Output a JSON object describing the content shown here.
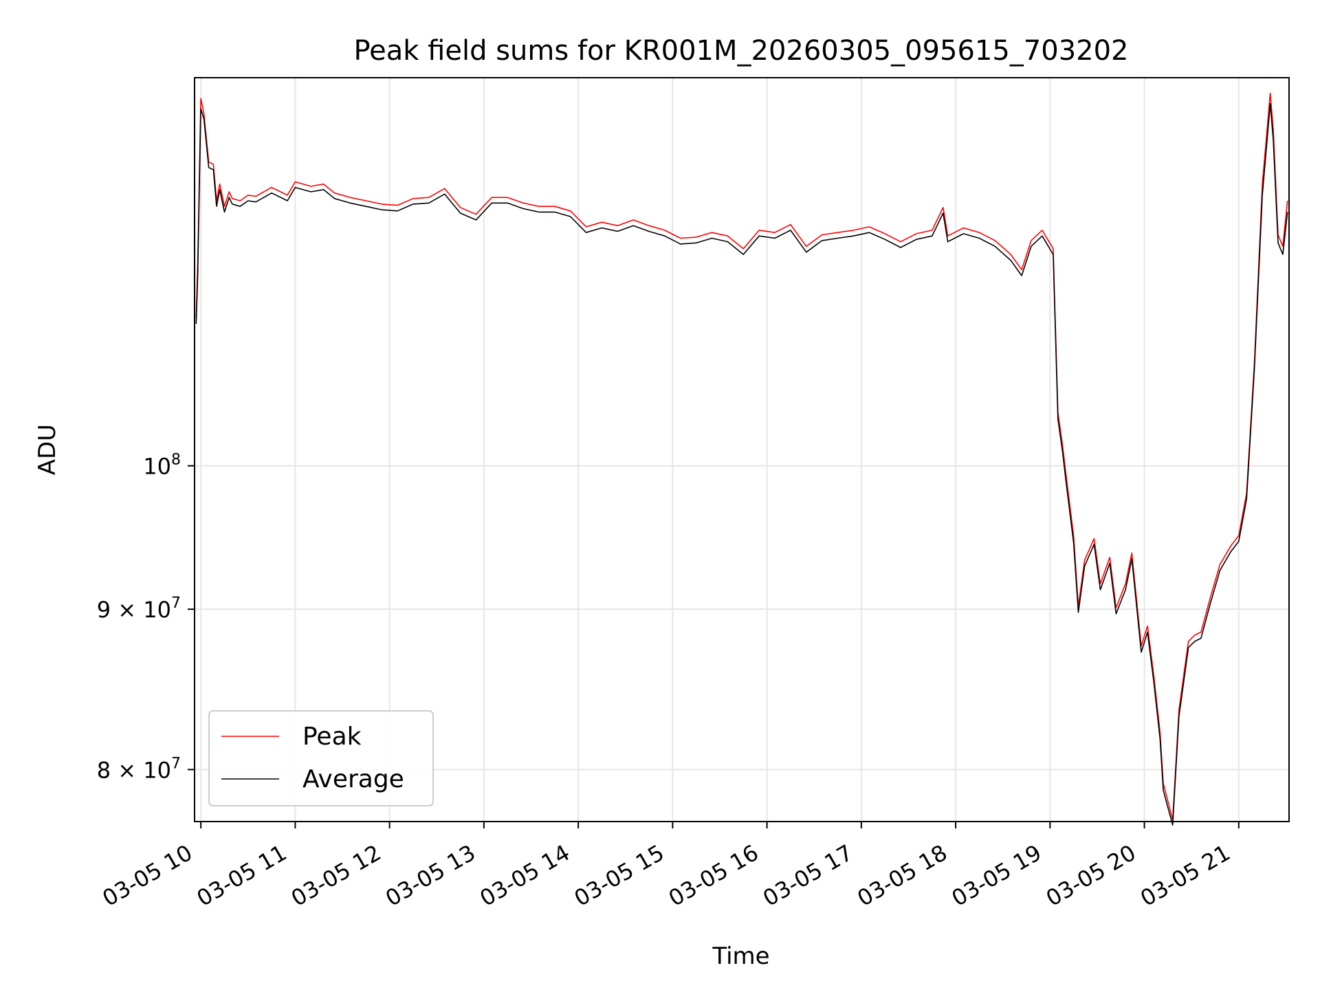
{
  "chart_data": {
    "type": "line",
    "title": "Peak field sums for KR001M_20260305_095615_703202",
    "xlabel": "Time",
    "ylabel": "ADU",
    "y_scale": "log",
    "xlim": [
      "2026-03-05 09:56",
      "2026-03-05 21:32"
    ],
    "ylim": [
      77000000,
      133000000
    ],
    "x_ticks": [
      {
        "x": "2026-03-05 10:00",
        "label": "03-05 10"
      },
      {
        "x": "2026-03-05 11:00",
        "label": "03-05 11"
      },
      {
        "x": "2026-03-05 12:00",
        "label": "03-05 12"
      },
      {
        "x": "2026-03-05 13:00",
        "label": "03-05 13"
      },
      {
        "x": "2026-03-05 14:00",
        "label": "03-05 14"
      },
      {
        "x": "2026-03-05 15:00",
        "label": "03-05 15"
      },
      {
        "x": "2026-03-05 16:00",
        "label": "03-05 16"
      },
      {
        "x": "2026-03-05 17:00",
        "label": "03-05 17"
      },
      {
        "x": "2026-03-05 18:00",
        "label": "03-05 18"
      },
      {
        "x": "2026-03-05 19:00",
        "label": "03-05 19"
      },
      {
        "x": "2026-03-05 20:00",
        "label": "03-05 20"
      },
      {
        "x": "2026-03-05 21:00",
        "label": "03-05 21"
      }
    ],
    "y_ticks": [
      {
        "value": 80000000,
        "label": "8 × 10⁷",
        "base": "8 × 10",
        "exp": "7"
      },
      {
        "value": 90000000,
        "label": "9 × 10⁷",
        "base": "9 × 10",
        "exp": "7"
      },
      {
        "value": 100000000,
        "label": "10⁸",
        "base": "10",
        "exp": "8"
      }
    ],
    "grid": true,
    "legend_position": "lower-left",
    "x": [
      "2026-03-05 09:57",
      "2026-03-05 09:58",
      "2026-03-05 10:00",
      "2026-03-05 10:02",
      "2026-03-05 10:05",
      "2026-03-05 10:08",
      "2026-03-05 10:10",
      "2026-03-05 10:12",
      "2026-03-05 10:15",
      "2026-03-05 10:18",
      "2026-03-05 10:20",
      "2026-03-05 10:25",
      "2026-03-05 10:30",
      "2026-03-05 10:35",
      "2026-03-05 10:45",
      "2026-03-05 10:55",
      "2026-03-05 11:00",
      "2026-03-05 11:10",
      "2026-03-05 11:18",
      "2026-03-05 11:25",
      "2026-03-05 11:35",
      "2026-03-05 11:45",
      "2026-03-05 11:55",
      "2026-03-05 12:05",
      "2026-03-05 12:15",
      "2026-03-05 12:25",
      "2026-03-05 12:35",
      "2026-03-05 12:45",
      "2026-03-05 12:55",
      "2026-03-05 13:05",
      "2026-03-05 13:15",
      "2026-03-05 13:25",
      "2026-03-05 13:35",
      "2026-03-05 13:45",
      "2026-03-05 13:55",
      "2026-03-05 14:05",
      "2026-03-05 14:15",
      "2026-03-05 14:25",
      "2026-03-05 14:35",
      "2026-03-05 14:45",
      "2026-03-05 14:55",
      "2026-03-05 15:05",
      "2026-03-05 15:15",
      "2026-03-05 15:25",
      "2026-03-05 15:35",
      "2026-03-05 15:45",
      "2026-03-05 15:55",
      "2026-03-05 16:05",
      "2026-03-05 16:15",
      "2026-03-05 16:25",
      "2026-03-05 16:35",
      "2026-03-05 16:45",
      "2026-03-05 16:55",
      "2026-03-05 17:05",
      "2026-03-05 17:15",
      "2026-03-05 17:25",
      "2026-03-05 17:35",
      "2026-03-05 17:45",
      "2026-03-05 17:52",
      "2026-03-05 17:55",
      "2026-03-05 18:05",
      "2026-03-05 18:15",
      "2026-03-05 18:25",
      "2026-03-05 18:35",
      "2026-03-05 18:42",
      "2026-03-05 18:48",
      "2026-03-05 18:55",
      "2026-03-05 19:02",
      "2026-03-05 19:05",
      "2026-03-05 19:08",
      "2026-03-05 19:10",
      "2026-03-05 19:15",
      "2026-03-05 19:18",
      "2026-03-05 19:22",
      "2026-03-05 19:28",
      "2026-03-05 19:32",
      "2026-03-05 19:38",
      "2026-03-05 19:42",
      "2026-03-05 19:48",
      "2026-03-05 19:52",
      "2026-03-05 19:58",
      "2026-03-05 20:02",
      "2026-03-05 20:06",
      "2026-03-05 20:10",
      "2026-03-05 20:12",
      "2026-03-05 20:18",
      "2026-03-05 20:22",
      "2026-03-05 20:28",
      "2026-03-05 20:32",
      "2026-03-05 20:36",
      "2026-03-05 20:42",
      "2026-03-05 20:48",
      "2026-03-05 20:55",
      "2026-03-05 21:00",
      "2026-03-05 21:05",
      "2026-03-05 21:10",
      "2026-03-05 21:15",
      "2026-03-05 21:18",
      "2026-03-05 21:20",
      "2026-03-05 21:22",
      "2026-03-05 21:25",
      "2026-03-05 21:28",
      "2026-03-05 21:31"
    ],
    "series": [
      {
        "name": "Peak",
        "color": "#ff0000",
        "values": [
          111500000,
          116000000,
          131000000,
          129500000,
          125000000,
          124800000,
          121500000,
          123000000,
          121000000,
          122300000,
          121700000,
          121500000,
          122000000,
          121900000,
          122700000,
          122000000,
          123200000,
          122800000,
          123000000,
          122200000,
          121800000,
          121500000,
          121200000,
          121100000,
          121700000,
          121800000,
          122600000,
          120900000,
          120300000,
          121800000,
          121800000,
          121300000,
          121000000,
          121000000,
          120600000,
          119200000,
          119600000,
          119300000,
          119800000,
          119300000,
          118900000,
          118200000,
          118300000,
          118700000,
          118400000,
          117300000,
          118900000,
          118700000,
          119400000,
          117500000,
          118500000,
          118700000,
          118900000,
          119200000,
          118600000,
          117900000,
          118600000,
          118900000,
          120900000,
          118400000,
          119100000,
          118700000,
          118000000,
          116800000,
          115500000,
          118000000,
          118900000,
          117300000,
          104000000,
          101500000,
          99500000,
          95000000,
          90200000,
          93300000,
          94800000,
          91700000,
          93500000,
          90100000,
          91700000,
          93800000,
          87600000,
          88900000,
          85700000,
          82200000,
          79200000,
          77100000,
          83600000,
          87900000,
          88300000,
          88500000,
          90800000,
          93000000,
          94300000,
          95000000,
          98000000,
          108000000,
          123000000,
          128000000,
          131500000,
          128000000,
          118500000,
          117500000,
          121500000
        ]
      },
      {
        "name": "Average",
        "color": "#000000",
        "values": [
          111000000,
          115000000,
          130000000,
          129000000,
          124500000,
          124300000,
          121000000,
          122500000,
          120500000,
          121800000,
          121200000,
          121000000,
          121500000,
          121400000,
          122200000,
          121500000,
          122700000,
          122300000,
          122500000,
          121700000,
          121300000,
          121000000,
          120700000,
          120600000,
          121200000,
          121300000,
          122100000,
          120400000,
          119800000,
          121300000,
          121300000,
          120800000,
          120500000,
          120500000,
          120100000,
          118700000,
          119100000,
          118800000,
          119300000,
          118800000,
          118400000,
          117700000,
          117800000,
          118200000,
          117900000,
          116800000,
          118400000,
          118200000,
          118900000,
          117000000,
          118000000,
          118200000,
          118400000,
          118700000,
          118100000,
          117400000,
          118100000,
          118400000,
          120400000,
          117900000,
          118600000,
          118200000,
          117500000,
          116300000,
          115000000,
          117500000,
          118400000,
          116800000,
          103500000,
          101000000,
          99000000,
          94500000,
          89800000,
          92900000,
          94400000,
          91300000,
          93100000,
          89700000,
          91300000,
          93400000,
          87200000,
          88500000,
          85300000,
          81800000,
          78800000,
          76800000,
          83200000,
          87500000,
          87900000,
          88100000,
          90400000,
          92600000,
          93900000,
          94600000,
          97600000,
          107500000,
          122000000,
          127000000,
          130500000,
          127000000,
          117800000,
          116800000,
          120500000
        ]
      }
    ]
  }
}
